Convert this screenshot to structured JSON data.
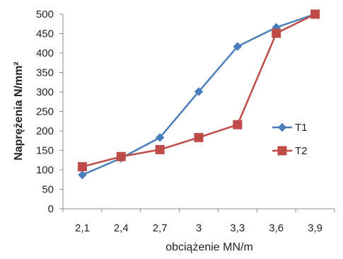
{
  "chart_data": {
    "type": "line",
    "title": "",
    "xlabel": "obciążenie MN/m",
    "ylabel": "Naprężenia N/mm²",
    "categories": [
      "2,1",
      "2,4",
      "2,7",
      "3",
      "3,3",
      "3,6",
      "3,9"
    ],
    "ylim": [
      0,
      500
    ],
    "yticks": [
      "0",
      "50",
      "100",
      "150",
      "200",
      "250",
      "300",
      "350",
      "400",
      "450",
      "500"
    ],
    "grid": false,
    "legend_position": "right",
    "series": [
      {
        "name": "T1",
        "marker": "diamond",
        "color": "#4A7EBB",
        "values": [
          87,
          130,
          183,
          301,
          417,
          466,
          500
        ]
      },
      {
        "name": "T2",
        "marker": "square",
        "color": "#BE4B48",
        "values": [
          108,
          134,
          152,
          183,
          216,
          451,
          500
        ]
      }
    ]
  }
}
